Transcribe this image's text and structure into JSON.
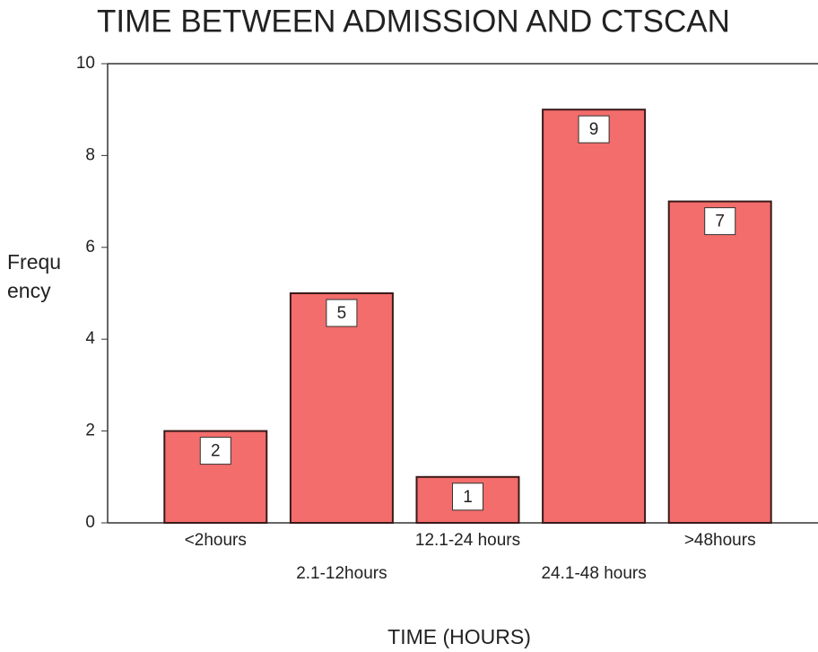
{
  "chart_data": {
    "type": "bar",
    "title": "TIME BETWEEN ADMISSION AND CTSCAN",
    "x_label": "TIME (HOURS)",
    "y_label": "Frequency",
    "categories": [
      "<2hours",
      "2.1-12hours",
      "12.1-24 hours",
      "24.1-48 hours",
      ">48hours"
    ],
    "values": [
      2,
      5,
      1,
      9,
      7
    ],
    "color": "#f26d6b",
    "ylim": [
      0,
      10
    ],
    "yticks": [
      0,
      2,
      4,
      6,
      8,
      10
    ]
  }
}
